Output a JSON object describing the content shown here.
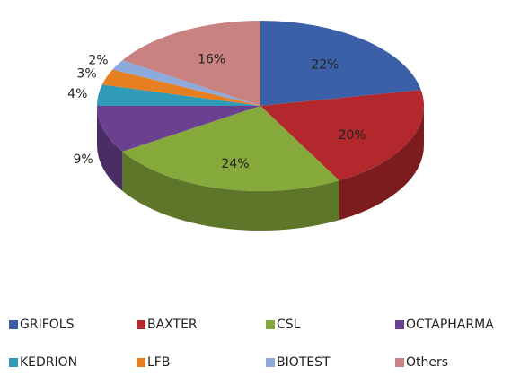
{
  "chart_data": {
    "type": "pie3d",
    "categories": [
      "GRIFOLS",
      "BAXTER",
      "CSL",
      "OCTAPHARMA",
      "KEDRION",
      "LFB",
      "BIOTEST",
      "Others"
    ],
    "values": [
      22,
      20,
      24,
      9,
      4,
      3,
      2,
      16
    ],
    "value_labels": [
      "22%",
      "20%",
      "24%",
      "9%",
      "4%",
      "3%",
      "2%",
      "16%"
    ],
    "colors": [
      "#3b60a8",
      "#b2282d",
      "#86a93c",
      "#6b4090",
      "#2f9bb6",
      "#e67f22",
      "#8eaadb",
      "#c98282"
    ],
    "legend": "bottom"
  }
}
